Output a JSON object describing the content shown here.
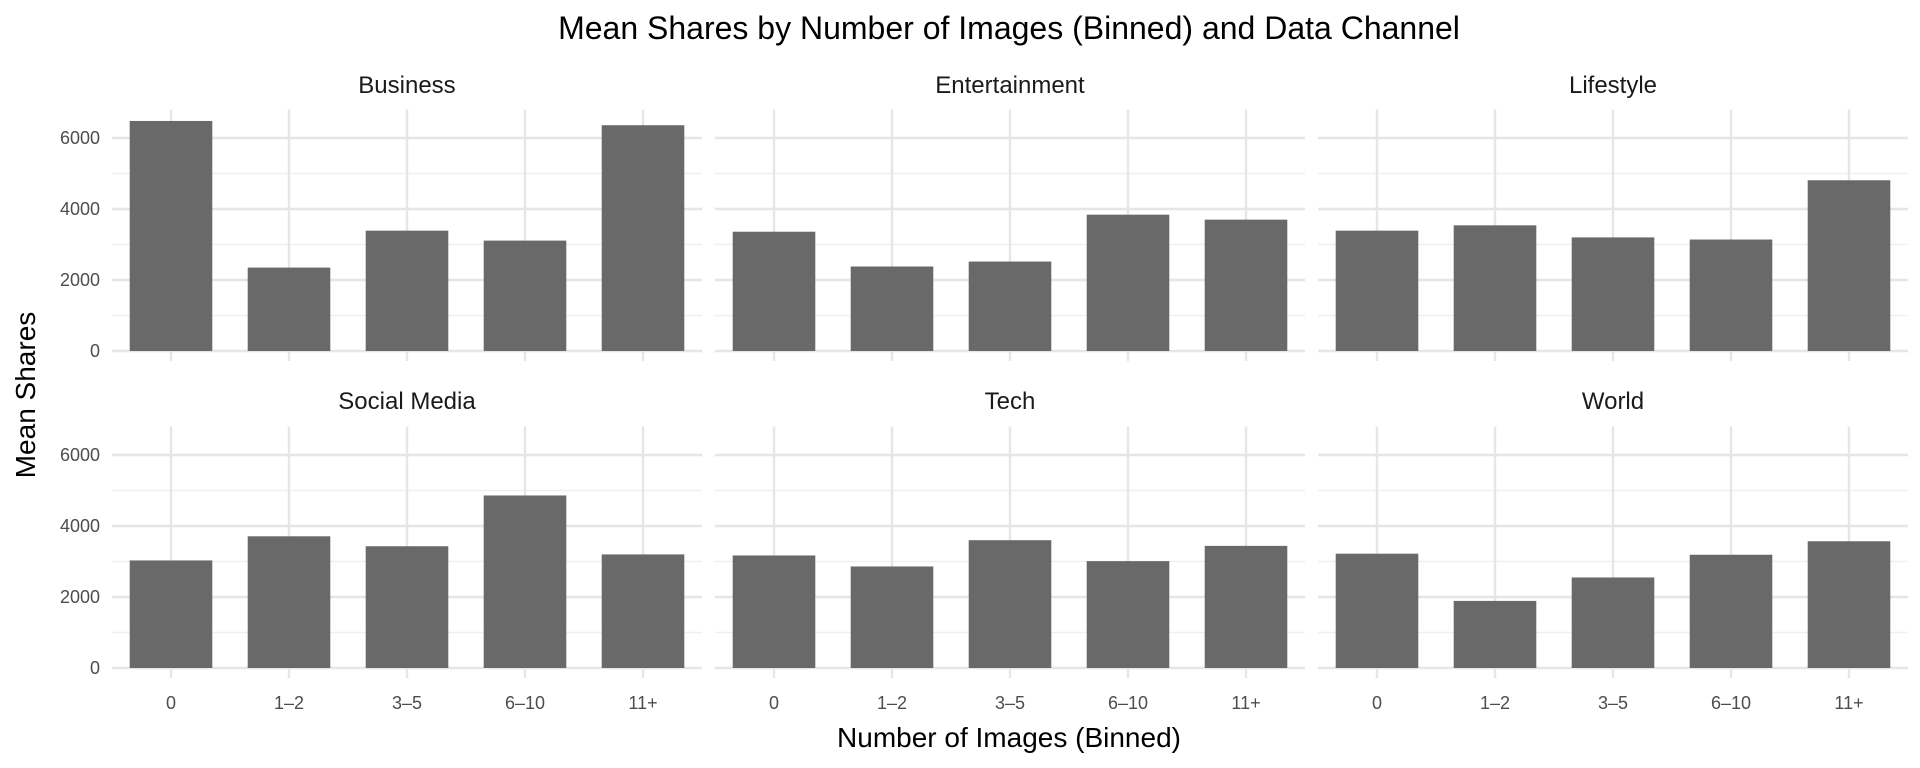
{
  "chart_data": {
    "type": "bar",
    "title": "Mean Shares by Number of Images (Binned) and Data Channel",
    "xlabel": "Number of Images (Binned)",
    "ylabel": "Mean Shares",
    "categories": [
      "0",
      "1–2",
      "3–5",
      "6–10",
      "11+"
    ],
    "ylim": [
      0,
      6800
    ],
    "yticks": [
      0,
      2000,
      4000,
      6000
    ],
    "ytick_labels": [
      "0",
      "2000",
      "4000",
      "6000"
    ],
    "grid": true,
    "legend": "none",
    "bar_color": "#696969",
    "facets": [
      {
        "name": "Business",
        "values": [
          6480,
          2350,
          3390,
          3110,
          6360
        ]
      },
      {
        "name": "Entertainment",
        "values": [
          3360,
          2380,
          2520,
          3840,
          3700
        ]
      },
      {
        "name": "Lifestyle",
        "values": [
          3390,
          3540,
          3200,
          3140,
          4810
        ]
      },
      {
        "name": "Social Media",
        "values": [
          3030,
          3710,
          3430,
          4860,
          3200
        ]
      },
      {
        "name": "Tech",
        "values": [
          3170,
          2860,
          3600,
          3010,
          3440
        ]
      },
      {
        "name": "World",
        "values": [
          3220,
          1890,
          2550,
          3190,
          3570
        ]
      }
    ]
  }
}
